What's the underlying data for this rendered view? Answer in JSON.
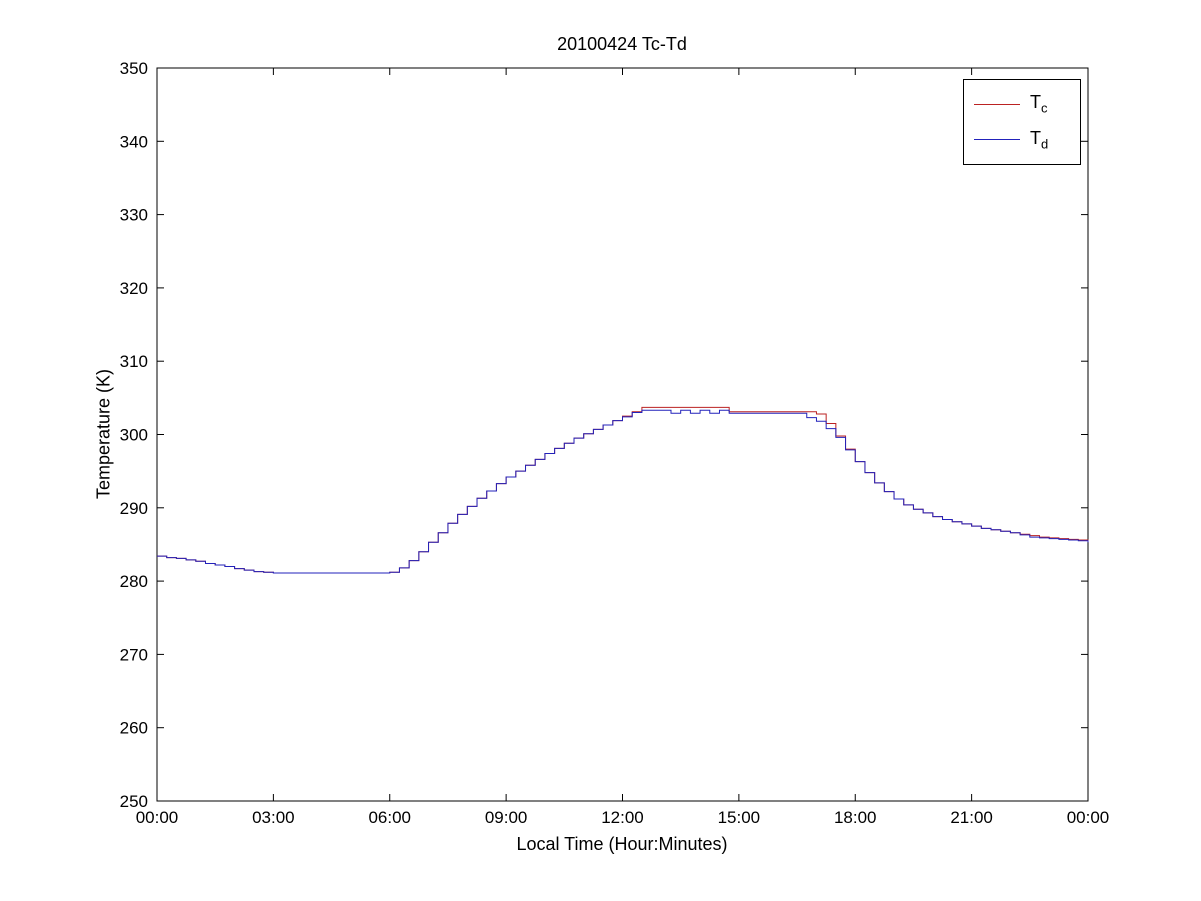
{
  "figure": {
    "background": "#ffffff",
    "axis_color": "#000000"
  },
  "chart_data": {
    "type": "line",
    "title": "20100424 Tc-Td",
    "xlabel": "Local Time (Hour:Minutes)",
    "ylabel": "Temperature (K)",
    "xlim_hours": [
      0,
      24
    ],
    "ylim": [
      250,
      350
    ],
    "grid": false,
    "legend_position": "top-right",
    "x_ticks_hours": [
      0,
      3,
      6,
      9,
      12,
      15,
      18,
      21,
      24
    ],
    "x_tick_labels": [
      "00:00",
      "03:00",
      "06:00",
      "09:00",
      "12:00",
      "15:00",
      "18:00",
      "21:00",
      "00:00"
    ],
    "y_ticks": [
      250,
      260,
      270,
      280,
      290,
      300,
      310,
      320,
      330,
      340,
      350
    ],
    "y_tick_labels": [
      "250",
      "260",
      "270",
      "280",
      "290",
      "300",
      "310",
      "320",
      "330",
      "340",
      "350"
    ],
    "x_start_hours": 0,
    "x_step_hours": 0.25,
    "line_style": "step-after",
    "series": [
      {
        "name": "Tc",
        "label_main": "T",
        "label_sub": "c",
        "color": "#bb2222",
        "values": [
          283.4,
          283.2,
          283.1,
          282.9,
          282.7,
          282.4,
          282.2,
          282.0,
          281.7,
          281.5,
          281.3,
          281.2,
          281.1,
          281.1,
          281.1,
          281.1,
          281.1,
          281.1,
          281.1,
          281.1,
          281.1,
          281.1,
          281.1,
          281.1,
          281.2,
          281.8,
          282.8,
          284.0,
          285.3,
          286.6,
          287.9,
          289.1,
          290.2,
          291.3,
          292.3,
          293.3,
          294.2,
          295.0,
          295.8,
          296.6,
          297.4,
          298.1,
          298.8,
          299.5,
          300.1,
          300.7,
          301.3,
          301.9,
          302.5,
          303.1,
          303.7,
          303.7,
          303.7,
          303.7,
          303.7,
          303.7,
          303.7,
          303.7,
          303.7,
          303.1,
          303.1,
          303.1,
          303.1,
          303.1,
          303.1,
          303.1,
          303.1,
          303.1,
          302.8,
          301.5,
          299.8,
          298.0,
          296.3,
          294.8,
          293.4,
          292.2,
          291.2,
          290.4,
          289.8,
          289.3,
          288.8,
          288.4,
          288.1,
          287.8,
          287.5,
          287.2,
          287.0,
          286.8,
          286.6,
          286.4,
          286.2,
          286.0,
          285.9,
          285.8,
          285.7,
          285.6,
          285.4
        ]
      },
      {
        "name": "Td",
        "label_main": "T",
        "label_sub": "d",
        "color": "#2222bb",
        "values": [
          283.4,
          283.2,
          283.1,
          282.9,
          282.7,
          282.4,
          282.2,
          282.0,
          281.7,
          281.5,
          281.3,
          281.2,
          281.1,
          281.1,
          281.1,
          281.1,
          281.1,
          281.1,
          281.1,
          281.1,
          281.1,
          281.1,
          281.1,
          281.1,
          281.2,
          281.8,
          282.8,
          284.0,
          285.3,
          286.6,
          287.9,
          289.1,
          290.2,
          291.3,
          292.3,
          293.3,
          294.2,
          295.0,
          295.8,
          296.6,
          297.4,
          298.1,
          298.8,
          299.5,
          300.1,
          300.7,
          301.3,
          301.9,
          302.4,
          303.0,
          303.3,
          303.3,
          303.3,
          302.9,
          303.3,
          302.9,
          303.3,
          302.9,
          303.3,
          302.9,
          302.9,
          302.9,
          302.9,
          302.9,
          302.9,
          302.9,
          302.9,
          302.3,
          301.8,
          300.8,
          299.6,
          297.9,
          296.3,
          294.8,
          293.4,
          292.2,
          291.2,
          290.4,
          289.8,
          289.3,
          288.8,
          288.4,
          288.1,
          287.8,
          287.5,
          287.2,
          287.0,
          286.8,
          286.6,
          286.3,
          286.0,
          285.9,
          285.8,
          285.7,
          285.6,
          285.5,
          285.3
        ]
      }
    ]
  }
}
